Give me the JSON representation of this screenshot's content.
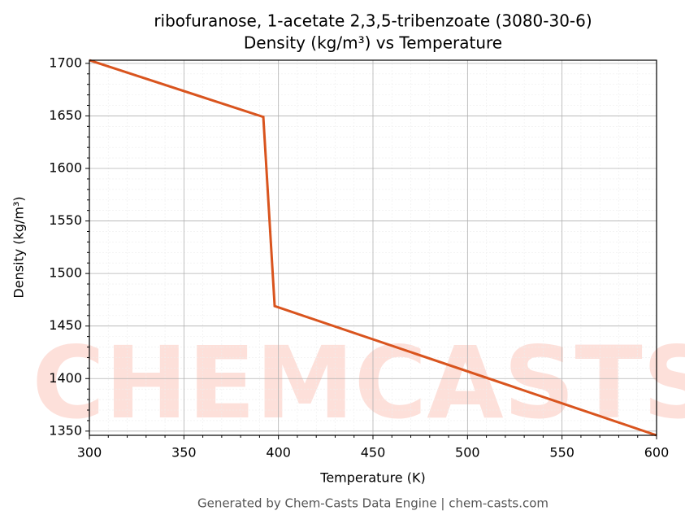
{
  "chart_data": {
    "type": "line",
    "title": "ribofuranose, 1-acetate 2,3,5-tribenzoate (3080-30-6)",
    "subtitle": "Density (kg/m³) vs Temperature",
    "xlabel": "Temperature (K)",
    "ylabel": "Density (kg/m³)",
    "footer": "Generated by Chem-Casts Data Engine | chem-casts.com",
    "watermark": "CHEMCASTS",
    "x": [
      300,
      392,
      398,
      600
    ],
    "series": [
      {
        "name": "Density",
        "color": "#d9541e",
        "values": [
          1703,
          1649,
          1469,
          1346
        ]
      }
    ],
    "xlim": [
      300,
      600
    ],
    "ylim": [
      1346,
      1703
    ],
    "xticks": [
      300,
      350,
      400,
      450,
      500,
      550,
      600
    ],
    "yticks": [
      1350,
      1400,
      1450,
      1500,
      1550,
      1600,
      1650,
      1700
    ],
    "xminor": [
      310,
      320,
      330,
      340,
      360,
      370,
      380,
      390,
      410,
      420,
      430,
      440,
      460,
      470,
      480,
      490,
      510,
      520,
      530,
      540,
      560,
      570,
      580,
      590
    ],
    "yminor": [
      1360,
      1370,
      1380,
      1390,
      1410,
      1420,
      1430,
      1440,
      1460,
      1470,
      1480,
      1490,
      1510,
      1520,
      1530,
      1540,
      1560,
      1570,
      1580,
      1590,
      1610,
      1620,
      1630,
      1640,
      1660,
      1670,
      1680,
      1690
    ],
    "grid": true
  }
}
